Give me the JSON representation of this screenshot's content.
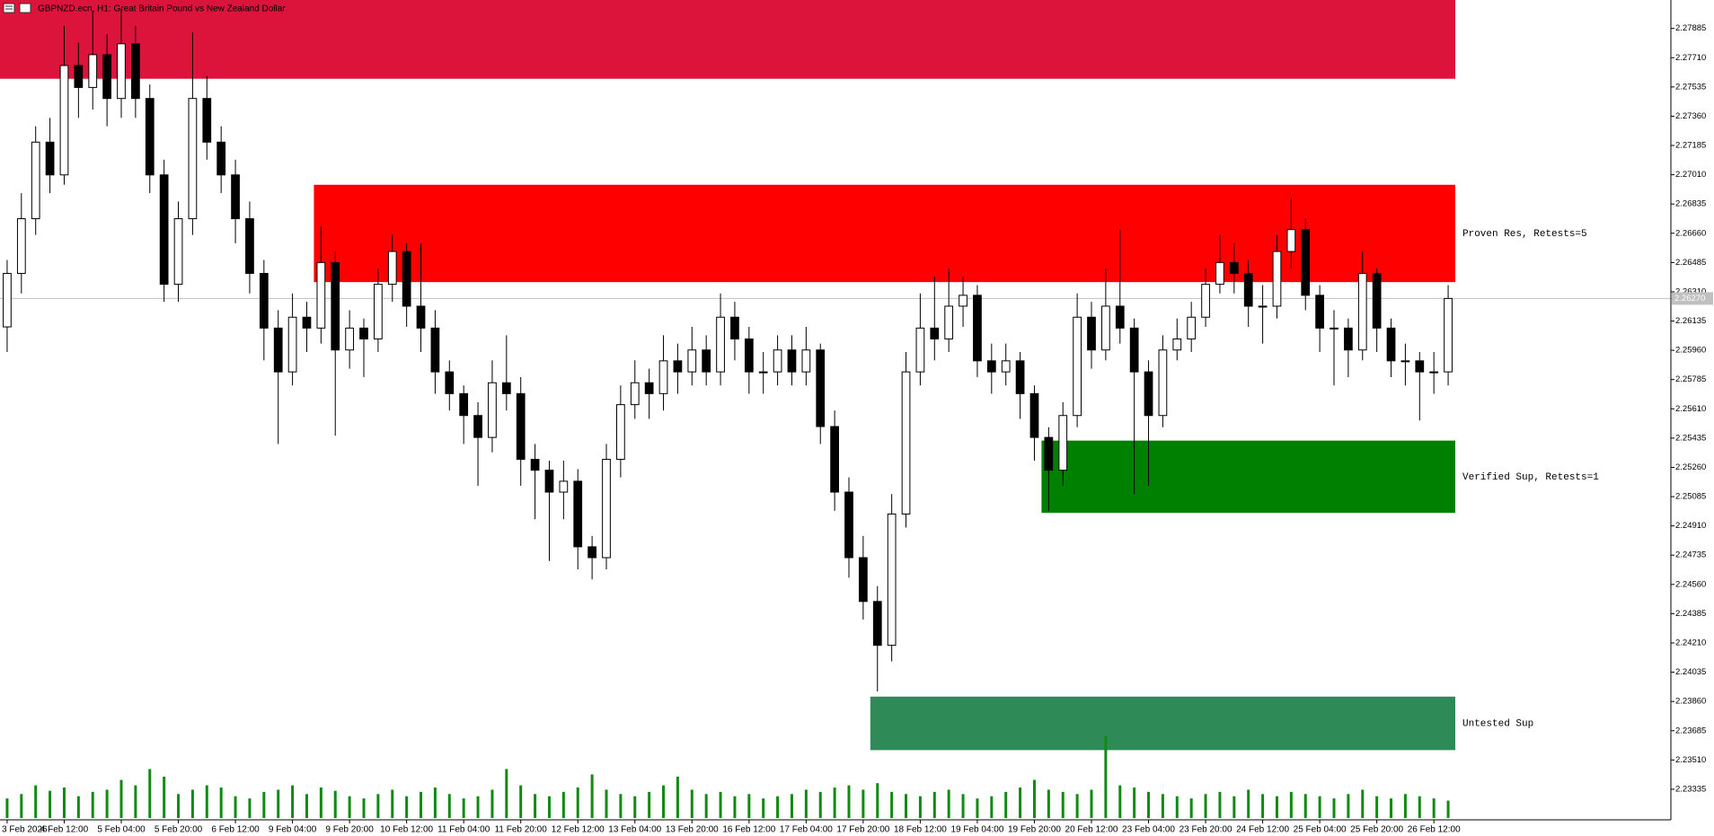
{
  "chart_data": {
    "type": "candlestick",
    "title": "GBPNZD.ecn, H1:  Great Britain Pound vs New Zealand Dollar",
    "ylim": [
      2.23152,
      2.28055
    ],
    "yticks": [
      2.23335,
      {
        "value": 2.2351,
        "label": "2.23510"
      },
      2.23685,
      {
        "value": 2.2386,
        "label": "2.23860"
      },
      2.24035,
      {
        "value": 2.2421,
        "label": "2.24210"
      },
      2.24385,
      {
        "value": 2.2456,
        "label": "2.24560"
      },
      2.24735,
      {
        "value": 2.2491,
        "label": "2.24910"
      },
      2.25085,
      {
        "value": 2.2526,
        "label": "2.25260"
      },
      2.25435,
      {
        "value": 2.2561,
        "label": "2.25610"
      },
      2.25785,
      {
        "value": 2.2596,
        "label": "2.25960"
      },
      2.26135,
      {
        "value": 2.2631,
        "label": "2.26310"
      },
      2.26485,
      {
        "value": 2.2666,
        "label": "2.26660"
      },
      2.26835,
      {
        "value": 2.2701,
        "label": "2.27010"
      },
      2.27185,
      {
        "value": 2.2736,
        "label": "2.27360"
      },
      2.27535,
      {
        "value": 2.2771,
        "label": "2.27710"
      },
      2.27885
    ],
    "xticks": [
      {
        "value": 0,
        "label": "3 Feb 2026"
      },
      {
        "value": 4,
        "label": "4 Feb 12:00"
      },
      {
        "value": 8,
        "label": "5 Feb 04:00"
      },
      {
        "value": 12,
        "label": "5 Feb 20:00"
      },
      {
        "value": 16,
        "label": "6 Feb 12:00"
      },
      {
        "value": 20,
        "label": "9 Feb 04:00"
      },
      {
        "value": 24,
        "label": "9 Feb 20:00"
      },
      {
        "value": 28,
        "label": "10 Feb 12:00"
      },
      {
        "value": 32,
        "label": "11 Feb 04:00"
      },
      {
        "value": 36,
        "label": "11 Feb 20:00"
      },
      {
        "value": 40,
        "label": "12 Feb 12:00"
      },
      {
        "value": 44,
        "label": "13 Feb 04:00"
      },
      {
        "value": 48,
        "label": "13 Feb 20:00"
      },
      {
        "value": 52,
        "label": "16 Feb 12:00"
      },
      {
        "value": 56,
        "label": "17 Feb 04:00"
      },
      {
        "value": 60,
        "label": "17 Feb 20:00"
      },
      {
        "value": 64,
        "label": "18 Feb 12:00"
      },
      {
        "value": 68,
        "label": "19 Feb 04:00"
      },
      {
        "value": 72,
        "label": "19 Feb 20:00"
      },
      {
        "value": 76,
        "label": "20 Feb 12:00"
      },
      {
        "value": 80,
        "label": "23 Feb 04:00"
      },
      {
        "value": 84,
        "label": "23 Feb 20:00"
      },
      {
        "value": 88,
        "label": "24 Feb 12:00"
      },
      {
        "value": 92,
        "label": "25 Feb 04:00"
      },
      {
        "value": 96,
        "label": "25 Feb 20:00"
      },
      {
        "value": 100,
        "label": "26 Feb 12:00"
      }
    ],
    "bull_color": "#ffffff",
    "bear_color": "#000000",
    "wick_color": "#000000",
    "volume_color": "#108a10",
    "current_price": {
      "value": 2.2627,
      "label": "2.26270"
    },
    "zones": [
      {
        "top": 2.281,
        "bottom": 2.27584,
        "color": "#dc143c",
        "from_index": 0
      },
      {
        "label": "Proven Res, Retests=5",
        "top": 2.2695,
        "bottom": 2.26368,
        "color": "#ff0000",
        "from_index": 22
      },
      {
        "label": "Verified Sup, Retests=1",
        "top": 2.2542,
        "bottom": 2.24988,
        "color": "#008000",
        "from_index": 73
      },
      {
        "label": "Untested Sup",
        "top": 2.23889,
        "bottom": 2.23569,
        "color": "#2e8b57",
        "from_index": 61
      }
    ],
    "ohlc": {
      "open": [
        2.261,
        2.2642,
        2.26747,
        2.27205,
        2.27009,
        2.27663,
        2.27532,
        2.27728,
        2.27466,
        2.27793,
        2.27466,
        2.27009,
        2.26355,
        2.26747,
        2.27466,
        2.27205,
        2.27009,
        2.26747,
        2.2642,
        2.26093,
        2.25831,
        2.26158,
        2.26093,
        2.26485,
        2.25962,
        2.26093,
        2.26028,
        2.26355,
        2.26551,
        2.26224,
        2.26093,
        2.25831,
        2.25701,
        2.2557,
        2.25439,
        2.25766,
        2.25701,
        2.25308,
        2.25243,
        2.25112,
        2.25177,
        2.24785,
        2.2472,
        2.25308,
        2.25635,
        2.25766,
        2.25701,
        2.25897,
        2.25831,
        2.25962,
        2.25831,
        2.26158,
        2.26028,
        2.25831,
        2.25831,
        2.25962,
        2.25831,
        2.25962,
        2.25504,
        2.25112,
        2.2472,
        2.24458,
        2.24196,
        2.24981,
        2.25831,
        2.26093,
        2.26028,
        2.26224,
        2.26289,
        2.25897,
        2.25831,
        2.25897,
        2.25701,
        2.25439,
        2.25243,
        2.2557,
        2.26158,
        2.25962,
        2.26224,
        2.26093,
        2.25831,
        2.2557,
        2.25962,
        2.26028,
        2.26158,
        2.26355,
        2.26485,
        2.2642,
        2.26224,
        2.26224,
        2.26551,
        2.26682,
        2.26289,
        2.26093,
        2.26093,
        2.25962,
        2.2642,
        2.26093,
        2.25897,
        2.25897,
        2.25831,
        2.25831
      ],
      "high": [
        2.265,
        2.269,
        2.273,
        2.2735,
        2.279,
        2.278,
        2.2799,
        2.2785,
        2.28,
        2.279,
        2.2755,
        2.271,
        2.2685,
        2.2786,
        2.276,
        2.273,
        2.271,
        2.2685,
        2.265,
        2.262,
        2.263,
        2.2625,
        2.267,
        2.2655,
        2.262,
        2.2615,
        2.2645,
        2.2665,
        2.266,
        2.266,
        2.262,
        2.259,
        2.2575,
        2.2565,
        2.259,
        2.2605,
        2.258,
        2.254,
        2.253,
        2.253,
        2.2525,
        2.2485,
        2.254,
        2.2575,
        2.259,
        2.2585,
        2.2605,
        2.26,
        2.261,
        2.2605,
        2.263,
        2.2625,
        2.261,
        2.2595,
        2.2605,
        2.2605,
        2.261,
        2.26,
        2.256,
        2.252,
        2.2485,
        2.2455,
        2.251,
        2.2595,
        2.263,
        2.264,
        2.2645,
        2.264,
        2.2635,
        2.26,
        2.26,
        2.2595,
        2.2575,
        2.255,
        2.2565,
        2.263,
        2.2625,
        2.2645,
        2.2668,
        2.2615,
        2.259,
        2.2605,
        2.2615,
        2.2625,
        2.2645,
        2.2665,
        2.266,
        2.265,
        2.2635,
        2.2665,
        2.2687,
        2.2675,
        2.2635,
        2.262,
        2.2615,
        2.2655,
        2.2645,
        2.2615,
        2.26,
        2.2595,
        2.2595,
        2.2635
      ],
      "low": [
        2.2595,
        2.263,
        2.2665,
        2.269,
        2.2695,
        2.2735,
        2.274,
        2.273,
        2.2735,
        2.2735,
        2.269,
        2.2625,
        2.2625,
        2.2665,
        2.271,
        2.269,
        2.266,
        2.263,
        2.259,
        2.254,
        2.2575,
        2.2595,
        2.26,
        2.2545,
        2.2585,
        2.258,
        2.2595,
        2.2625,
        2.261,
        2.2595,
        2.257,
        2.256,
        2.254,
        2.2515,
        2.2535,
        2.256,
        2.2515,
        2.2495,
        2.247,
        2.2495,
        2.2465,
        2.2459,
        2.2465,
        2.252,
        2.2555,
        2.2555,
        2.256,
        2.257,
        2.2575,
        2.2575,
        2.2575,
        2.259,
        2.257,
        2.257,
        2.2575,
        2.2575,
        2.2575,
        2.254,
        2.25,
        2.246,
        2.2435,
        2.2392,
        2.241,
        2.249,
        2.2575,
        2.259,
        2.2595,
        2.261,
        2.258,
        2.257,
        2.2575,
        2.2555,
        2.253,
        2.25,
        2.2515,
        2.255,
        2.2585,
        2.259,
        2.26,
        2.251,
        2.2515,
        2.255,
        2.259,
        2.2595,
        2.261,
        2.263,
        2.263,
        2.261,
        2.26,
        2.2615,
        2.2645,
        2.262,
        2.2595,
        2.2575,
        2.258,
        2.259,
        2.2595,
        2.258,
        2.2575,
        2.2554,
        2.257,
        2.2575
      ],
      "close": [
        2.2642,
        2.26747,
        2.27205,
        2.27009,
        2.27663,
        2.27532,
        2.27728,
        2.27466,
        2.27793,
        2.27466,
        2.27009,
        2.26355,
        2.26747,
        2.27466,
        2.27205,
        2.27009,
        2.26747,
        2.2642,
        2.26093,
        2.25831,
        2.26158,
        2.26093,
        2.26485,
        2.25962,
        2.26093,
        2.26028,
        2.26355,
        2.26551,
        2.26224,
        2.26093,
        2.25831,
        2.25701,
        2.2557,
        2.25439,
        2.25766,
        2.25701,
        2.25308,
        2.25243,
        2.25112,
        2.25177,
        2.24785,
        2.2472,
        2.25308,
        2.25635,
        2.25766,
        2.25701,
        2.25897,
        2.25831,
        2.25962,
        2.25831,
        2.26158,
        2.26028,
        2.25831,
        2.25831,
        2.25962,
        2.25831,
        2.25962,
        2.25504,
        2.25112,
        2.2472,
        2.24458,
        2.24196,
        2.24981,
        2.25831,
        2.26093,
        2.26028,
        2.26224,
        2.26289,
        2.25897,
        2.25831,
        2.25897,
        2.25701,
        2.25439,
        2.25243,
        2.2557,
        2.26158,
        2.25962,
        2.26224,
        2.26093,
        2.25831,
        2.2557,
        2.25962,
        2.26028,
        2.26158,
        2.26355,
        2.26485,
        2.2642,
        2.26224,
        2.26224,
        2.26551,
        2.26682,
        2.26289,
        2.26093,
        2.26093,
        2.25962,
        2.2642,
        2.26093,
        2.25897,
        2.25897,
        2.25831,
        2.25831,
        2.2627
      ]
    },
    "volume": [
      18,
      22,
      30,
      25,
      28,
      20,
      24,
      26,
      35,
      30,
      45,
      38,
      22,
      26,
      30,
      28,
      20,
      18,
      24,
      26,
      30,
      22,
      28,
      25,
      20,
      18,
      22,
      26,
      20,
      24,
      28,
      22,
      18,
      20,
      26,
      45,
      30,
      22,
      20,
      24,
      28,
      40,
      26,
      22,
      20,
      24,
      30,
      38,
      26,
      22,
      24,
      20,
      22,
      18,
      20,
      22,
      26,
      24,
      28,
      30,
      26,
      32,
      24,
      22,
      20,
      24,
      26,
      22,
      18,
      20,
      24,
      28,
      35,
      26,
      24,
      22,
      26,
      75,
      30,
      28,
      24,
      22,
      20,
      18,
      22,
      24,
      20,
      26,
      22,
      20,
      24,
      22,
      20,
      18,
      22,
      26,
      20,
      18,
      22,
      20,
      18,
      16
    ]
  }
}
